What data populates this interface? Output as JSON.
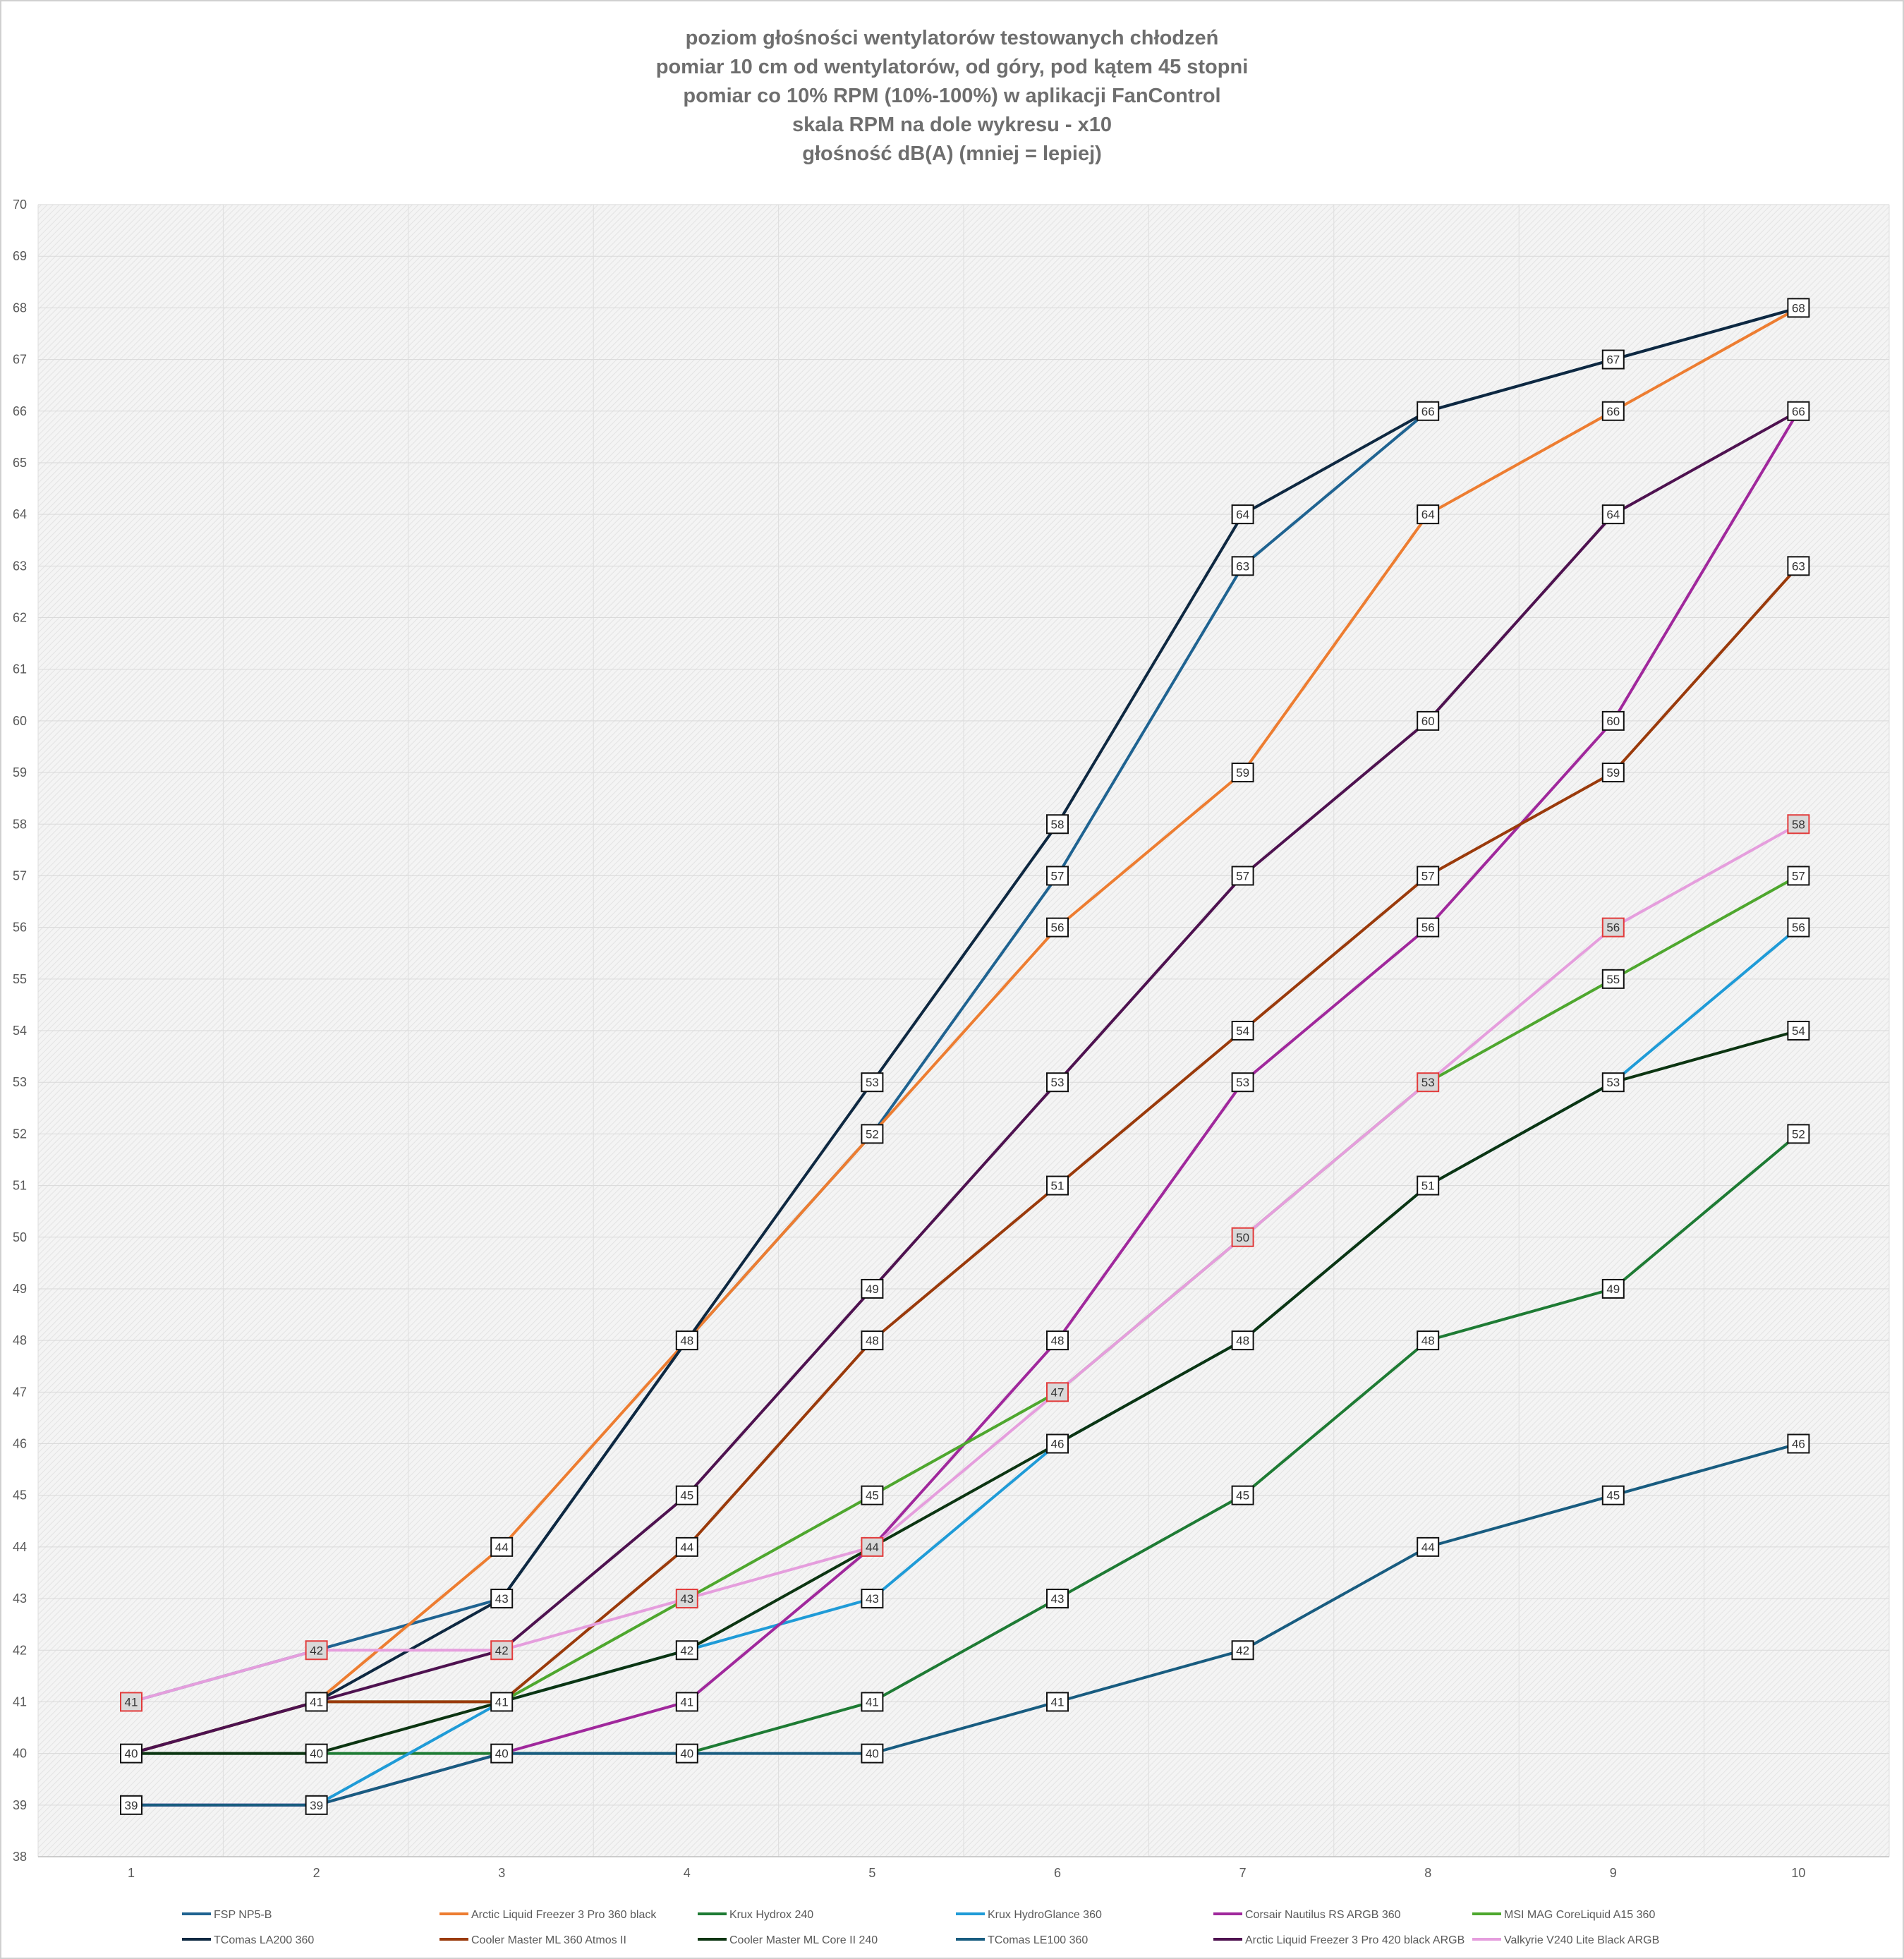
{
  "chart_data": {
    "type": "line",
    "title_lines": [
      "poziom głośności wentylatorów testowanych chłodzeń",
      "pomiar 10 cm od wentylatorów, od góry, pod kątem 45 stopni",
      "pomiar co 10% RPM (10%-100%) w aplikacji FanControl",
      "skala RPM na dole wykresu - x10",
      "głośność dB(A) (mniej = lepiej)"
    ],
    "xlabel": "",
    "ylabel": "",
    "x": [
      "1",
      "2",
      "3",
      "4",
      "5",
      "6",
      "7",
      "8",
      "9",
      "10"
    ],
    "ylim": [
      38,
      70
    ],
    "yticks": [
      "38",
      "39",
      "40",
      "41",
      "42",
      "43",
      "44",
      "45",
      "46",
      "47",
      "48",
      "49",
      "50",
      "51",
      "52",
      "53",
      "54",
      "55",
      "56",
      "57",
      "58",
      "59",
      "60",
      "61",
      "62",
      "63",
      "64",
      "65",
      "66",
      "67",
      "68",
      "69",
      "70"
    ],
    "grid": true,
    "legend_position": "bottom",
    "series": [
      {
        "name": "FSP NP5-B",
        "color": "#1f6391",
        "values": [
          41,
          42,
          43,
          48,
          52,
          57,
          63,
          66,
          67,
          68
        ]
      },
      {
        "name": "Arctic Liquid Freezer 3 Pro 360 black",
        "color": "#ed7d31",
        "values": [
          40,
          41,
          44,
          48,
          52,
          56,
          59,
          64,
          66,
          68
        ]
      },
      {
        "name": "Krux Hydrox 240",
        "color": "#1e7b34",
        "values": [
          40,
          40,
          40,
          40,
          41,
          43,
          45,
          48,
          49,
          52
        ]
      },
      {
        "name": "Krux HydroGlance 360",
        "color": "#1f9bd7",
        "values": [
          39,
          39,
          41,
          42,
          43,
          46,
          48,
          51,
          53,
          56
        ]
      },
      {
        "name": "Corsair  Nautilus RS ARGB 360",
        "color": "#a0289c",
        "values": [
          39,
          39,
          40,
          41,
          44,
          48,
          53,
          56,
          60,
          66
        ]
      },
      {
        "name": "MSI MAG CoreLiquid A15 360",
        "color": "#4ea72e",
        "values": [
          40,
          41,
          41,
          43,
          45,
          47,
          50,
          53,
          55,
          57
        ]
      },
      {
        "name": "TComas LA200 360",
        "color": "#0e2841",
        "values": [
          40,
          41,
          43,
          48,
          53,
          58,
          64,
          66,
          67,
          68
        ]
      },
      {
        "name": "Cooler Master ML 360 Atmos II",
        "color": "#9a3a0b",
        "values": [
          40,
          41,
          41,
          44,
          48,
          51,
          54,
          57,
          59,
          63
        ]
      },
      {
        "name": "Cooler Master ML Core II 240",
        "color": "#0c3512",
        "values": [
          40,
          40,
          41,
          42,
          44,
          46,
          48,
          51,
          53,
          54
        ]
      },
      {
        "name": "TComas LE100 360",
        "color": "#185c80",
        "values": [
          39,
          39,
          40,
          40,
          40,
          41,
          42,
          44,
          45,
          46
        ]
      },
      {
        "name": "Arctic Liquid Freezer 3 Pro 420 black ARGB",
        "color": "#4e1250",
        "values": [
          40,
          41,
          42,
          45,
          49,
          53,
          57,
          60,
          64,
          66
        ]
      },
      {
        "name": "Valkyrie V240 Lite Black ARGB",
        "color": "#e59edd",
        "values": [
          41,
          42,
          42,
          43,
          44,
          47,
          50,
          53,
          56,
          58
        ]
      }
    ],
    "data_labels": [
      {
        "x": 1,
        "y": 41,
        "red": true
      },
      {
        "x": 1,
        "y": 40
      },
      {
        "x": 1,
        "y": 39
      },
      {
        "x": 2,
        "y": 42,
        "red": true
      },
      {
        "x": 2,
        "y": 41
      },
      {
        "x": 2,
        "y": 40
      },
      {
        "x": 2,
        "y": 39
      },
      {
        "x": 3,
        "y": 44
      },
      {
        "x": 3,
        "y": 43
      },
      {
        "x": 3,
        "y": 42,
        "red": true
      },
      {
        "x": 3,
        "y": 41
      },
      {
        "x": 3,
        "y": 40
      },
      {
        "x": 4,
        "y": 48
      },
      {
        "x": 4,
        "y": 45
      },
      {
        "x": 4,
        "y": 44
      },
      {
        "x": 4,
        "y": 43,
        "red": true
      },
      {
        "x": 4,
        "y": 42
      },
      {
        "x": 4,
        "y": 41
      },
      {
        "x": 4,
        "y": 40
      },
      {
        "x": 5,
        "y": 53
      },
      {
        "x": 5,
        "y": 52
      },
      {
        "x": 5,
        "y": 49
      },
      {
        "x": 5,
        "y": 48
      },
      {
        "x": 5,
        "y": 45
      },
      {
        "x": 5,
        "y": 44,
        "red": true
      },
      {
        "x": 5,
        "y": 43
      },
      {
        "x": 5,
        "y": 41
      },
      {
        "x": 5,
        "y": 40
      },
      {
        "x": 6,
        "y": 58
      },
      {
        "x": 6,
        "y": 57
      },
      {
        "x": 6,
        "y": 56
      },
      {
        "x": 6,
        "y": 53
      },
      {
        "x": 6,
        "y": 51
      },
      {
        "x": 6,
        "y": 48
      },
      {
        "x": 6,
        "y": 47,
        "red": true
      },
      {
        "x": 6,
        "y": 46
      },
      {
        "x": 6,
        "y": 43
      },
      {
        "x": 6,
        "y": 41
      },
      {
        "x": 7,
        "y": 64
      },
      {
        "x": 7,
        "y": 63
      },
      {
        "x": 7,
        "y": 59
      },
      {
        "x": 7,
        "y": 57
      },
      {
        "x": 7,
        "y": 54
      },
      {
        "x": 7,
        "y": 53
      },
      {
        "x": 7,
        "y": 50,
        "red": true
      },
      {
        "x": 7,
        "y": 48
      },
      {
        "x": 7,
        "y": 45
      },
      {
        "x": 7,
        "y": 42
      },
      {
        "x": 8,
        "y": 66
      },
      {
        "x": 8,
        "y": 64
      },
      {
        "x": 8,
        "y": 60
      },
      {
        "x": 8,
        "y": 57
      },
      {
        "x": 8,
        "y": 56
      },
      {
        "x": 8,
        "y": 53,
        "red": true
      },
      {
        "x": 8,
        "y": 51
      },
      {
        "x": 8,
        "y": 48
      },
      {
        "x": 8,
        "y": 44
      },
      {
        "x": 9,
        "y": 67
      },
      {
        "x": 9,
        "y": 66
      },
      {
        "x": 9,
        "y": 64
      },
      {
        "x": 9,
        "y": 60
      },
      {
        "x": 9,
        "y": 59
      },
      {
        "x": 9,
        "y": 56,
        "red": true
      },
      {
        "x": 9,
        "y": 55
      },
      {
        "x": 9,
        "y": 53
      },
      {
        "x": 9,
        "y": 49
      },
      {
        "x": 9,
        "y": 45
      },
      {
        "x": 10,
        "y": 68
      },
      {
        "x": 10,
        "y": 66
      },
      {
        "x": 10,
        "y": 63
      },
      {
        "x": 10,
        "y": 58,
        "red": true
      },
      {
        "x": 10,
        "y": 57
      },
      {
        "x": 10,
        "y": 56
      },
      {
        "x": 10,
        "y": 54
      },
      {
        "x": 10,
        "y": 52
      },
      {
        "x": 10,
        "y": 46
      }
    ]
  }
}
